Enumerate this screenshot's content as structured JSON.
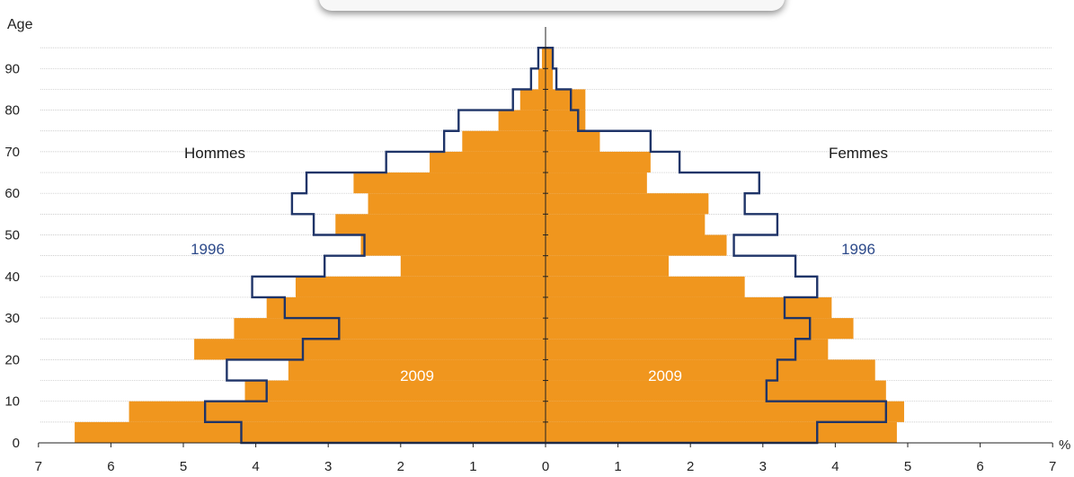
{
  "chart_data": {
    "type": "bar",
    "subtype": "population-pyramid",
    "ylabel": "Age",
    "xunit": "%",
    "xlim": [
      -7,
      7
    ],
    "ylim": [
      0,
      95
    ],
    "x_ticks": [
      "7",
      "6",
      "5",
      "4",
      "3",
      "2",
      "1",
      "0",
      "1",
      "2",
      "3",
      "4",
      "5",
      "6",
      "7"
    ],
    "y_ticks": [
      "0",
      "10",
      "20",
      "30",
      "40",
      "50",
      "60",
      "70",
      "80",
      "90"
    ],
    "grid": true,
    "age_groups": [
      "0-4",
      "5-9",
      "10-14",
      "15-19",
      "20-24",
      "25-29",
      "30-34",
      "35-39",
      "40-44",
      "45-49",
      "50-54",
      "55-59",
      "60-64",
      "65-69",
      "70-74",
      "75-79",
      "80-84",
      "85-89",
      "90-94"
    ],
    "series": [
      {
        "name": "2009",
        "side": "Hommes",
        "style": "filled",
        "color": "#F0961E",
        "values": [
          6.5,
          5.75,
          4.15,
          3.55,
          4.85,
          4.3,
          3.85,
          3.45,
          2.0,
          2.55,
          2.9,
          2.45,
          2.65,
          1.6,
          1.15,
          0.65,
          0.35,
          0.1,
          0.05
        ]
      },
      {
        "name": "1996",
        "side": "Hommes",
        "style": "outline",
        "color": "#1F3468",
        "values": [
          4.2,
          4.7,
          3.85,
          4.4,
          3.35,
          2.85,
          3.6,
          4.05,
          3.05,
          2.5,
          3.2,
          3.5,
          3.3,
          2.2,
          1.4,
          1.2,
          0.45,
          0.2,
          0.1
        ]
      },
      {
        "name": "2009",
        "side": "Femmes",
        "style": "filled",
        "color": "#F0961E",
        "values": [
          4.85,
          4.95,
          4.7,
          4.55,
          3.9,
          4.25,
          3.95,
          2.75,
          1.7,
          2.5,
          2.2,
          2.25,
          1.4,
          1.45,
          0.75,
          0.55,
          0.55,
          0.1,
          0.1
        ]
      },
      {
        "name": "1996",
        "side": "Femmes",
        "style": "outline",
        "color": "#1F3468",
        "values": [
          3.75,
          4.7,
          3.05,
          3.2,
          3.45,
          3.65,
          3.3,
          3.75,
          3.45,
          2.6,
          3.2,
          2.75,
          2.95,
          1.85,
          1.45,
          0.45,
          0.35,
          0.15,
          0.1
        ]
      }
    ],
    "annotations": {
      "left_title": "Hommes",
      "right_title": "Femmes",
      "left_1996": "1996",
      "right_1996": "1996",
      "left_2009": "2009",
      "right_2009": "2009"
    },
    "colors": {
      "fill_2009": "#F0961E",
      "outline_1996": "#1F3468",
      "label_1996": "#2D4A8A",
      "grid": "#BDBDBD"
    }
  }
}
